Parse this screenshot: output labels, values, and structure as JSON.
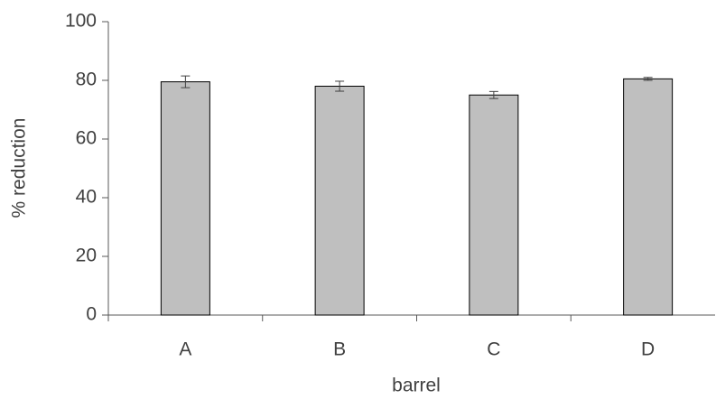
{
  "chart_data": {
    "type": "bar",
    "x_label": "barrel",
    "y_label": "% reduction",
    "categories": [
      "A",
      "B",
      "C",
      "D"
    ],
    "values": [
      79.5,
      78,
      75,
      80.5
    ],
    "errors": [
      2,
      1.7,
      1.2,
      0.5
    ],
    "color": "#bfbfbf",
    "ylim": [
      0,
      100
    ],
    "yticks": [
      0,
      20,
      40,
      60,
      80,
      100
    ],
    "grid": false
  }
}
